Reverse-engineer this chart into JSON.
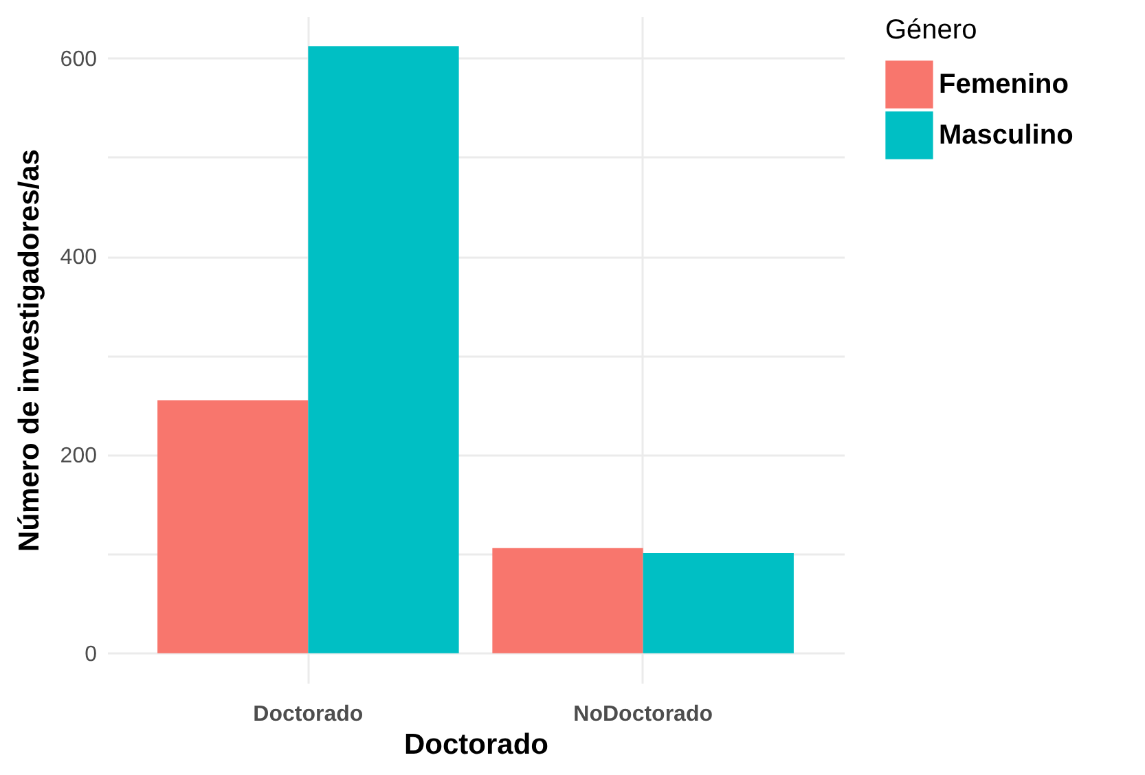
{
  "chart_data": {
    "type": "bar",
    "xlabel": "Doctorado",
    "ylabel": "Número de investigadores/as",
    "legend_title": "Género",
    "categories": [
      "Doctorado",
      "NoDoctorado"
    ],
    "series": [
      {
        "name": "Femenino",
        "color": "#f8766d",
        "values": [
          255,
          106
        ]
      },
      {
        "name": "Masculino",
        "color": "#00bfc4",
        "values": [
          612,
          101
        ]
      }
    ],
    "ylim": [
      -30,
      642
    ],
    "yticks": [
      0,
      {
        "value": 100,
        "label": null
      },
      200,
      {
        "value": 300,
        "label": null
      },
      400,
      {
        "value": 500,
        "label": null
      },
      600
    ],
    "grid": true,
    "legend": "right"
  }
}
